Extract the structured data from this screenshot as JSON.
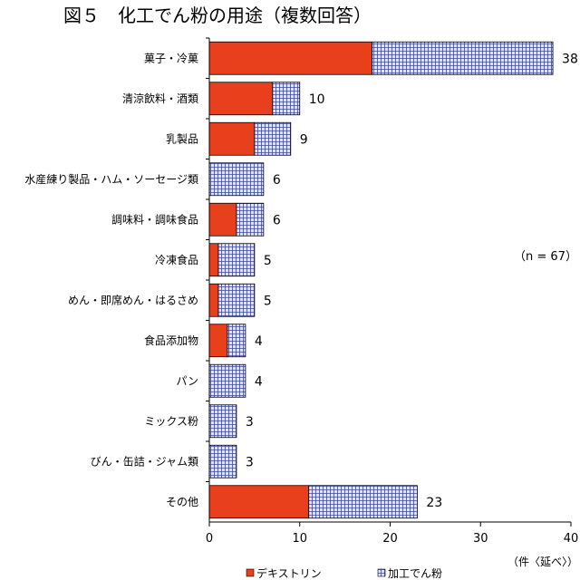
{
  "chart_data": {
    "type": "bar",
    "orientation": "horizontal",
    "stacked": true,
    "title": "図５　化工でん粉の用途（複数回答）",
    "categories": [
      "菓子・冷菓",
      "清涼飲料・酒類",
      "乳製品",
      "水産練り製品・ハム・ソーセージ類",
      "調味料・調味食品",
      "冷凍食品",
      "めん・即席めん・はるさめ",
      "食品添加物",
      "パン",
      "ミックス粉",
      "びん・缶詰・ジャム類",
      "その他"
    ],
    "series": [
      {
        "name": "デキストリン",
        "values": [
          18,
          7,
          5,
          0,
          3,
          1,
          1,
          2,
          0,
          0,
          0,
          11
        ],
        "color": "#e8401c"
      },
      {
        "name": "加工でん粉",
        "values": [
          20,
          3,
          4,
          6,
          3,
          4,
          4,
          2,
          4,
          3,
          3,
          12
        ],
        "color": "#dfe3f5",
        "pattern": "grid",
        "grid_color": "#3a4a9e"
      }
    ],
    "totals": [
      "38",
      "10",
      "9",
      "6",
      "6",
      "5",
      "5",
      "4",
      "4",
      "3",
      "3",
      "23"
    ],
    "xlim": [
      0,
      40
    ],
    "xticks": [
      "0",
      "10",
      "20",
      "30",
      "40"
    ],
    "xunit": "（件〈延べ〉）",
    "annotation": "（n = 67）",
    "legend_position": "bottom",
    "grid": false
  }
}
